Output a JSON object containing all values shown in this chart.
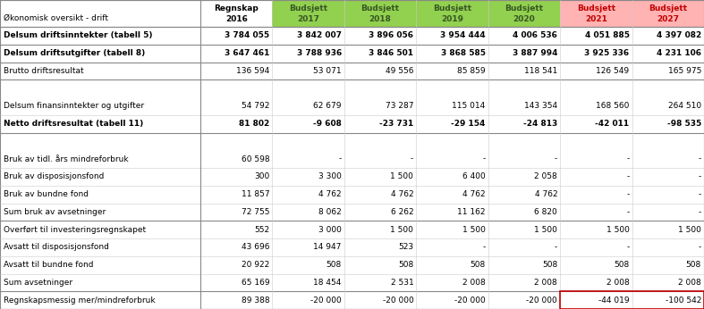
{
  "title_row1": "Økonomisk oversikt - drift",
  "col_headers_line1": [
    "Regnskap",
    "Budsjett",
    "Budsjett",
    "Budsjett",
    "Budsjett",
    "Budsjett",
    "Budsjett"
  ],
  "col_headers_line2": [
    "2016",
    "2017",
    "2018",
    "2019",
    "2020",
    "2021",
    "2027"
  ],
  "col_header_bg": [
    "#ffffff",
    "#92d050",
    "#92d050",
    "#92d050",
    "#92d050",
    "#ffb3b3",
    "#ffb3b3"
  ],
  "col_header_fg": [
    "#000000",
    "#375623",
    "#375623",
    "#375623",
    "#375623",
    "#c00000",
    "#c00000"
  ],
  "rows": [
    {
      "label": "Delsum driftsinntekter (tabell 5)",
      "values": [
        "3 784 055",
        "3 842 007",
        "3 896 056",
        "3 954 444",
        "4 006 536",
        "4 051 885",
        "4 397 082"
      ],
      "bold": true,
      "thick_bottom": true,
      "thick_top": true
    },
    {
      "label": "Delsum driftsutgifter (tabell 8)",
      "values": [
        "3 647 461",
        "3 788 936",
        "3 846 501",
        "3 868 585",
        "3 887 994",
        "3 925 336",
        "4 231 106"
      ],
      "bold": true,
      "thick_bottom": true,
      "thick_top": false
    },
    {
      "label": "Brutto driftsresultat",
      "values": [
        "136 594",
        "53 071",
        "49 556",
        "85 859",
        "118 541",
        "126 549",
        "165 975"
      ],
      "bold": false,
      "thick_bottom": true,
      "thick_top": false
    },
    {
      "label": "",
      "values": [
        "",
        "",
        "",
        "",
        "",
        "",
        ""
      ],
      "bold": false,
      "thick_bottom": false,
      "thick_top": false,
      "empty": true
    },
    {
      "label": "Delsum finansinntekter og utgifter",
      "values": [
        "54 792",
        "62 679",
        "73 287",
        "115 014",
        "143 354",
        "168 560",
        "264 510"
      ],
      "bold": false,
      "thick_bottom": false,
      "thick_top": false
    },
    {
      "label": "Netto driftsresultat (tabell 11)",
      "values": [
        "81 802",
        "-9 608",
        "-23 731",
        "-29 154",
        "-24 813",
        "-42 011",
        "-98 535"
      ],
      "bold": true,
      "thick_bottom": true,
      "thick_top": false
    },
    {
      "label": "",
      "values": [
        "",
        "",
        "",
        "",
        "",
        "",
        ""
      ],
      "bold": false,
      "thick_bottom": false,
      "thick_top": false,
      "empty": true
    },
    {
      "label": "Bruk av tidl. års mindreforbruk",
      "values": [
        "60 598",
        "-",
        "-",
        "-",
        "-",
        "-",
        "-"
      ],
      "bold": false,
      "thick_bottom": false,
      "thick_top": false
    },
    {
      "label": "Bruk av disposisjonsfond",
      "values": [
        "300",
        "3 300",
        "1 500",
        "6 400",
        "2 058",
        "-",
        "-"
      ],
      "bold": false,
      "thick_bottom": false,
      "thick_top": false
    },
    {
      "label": "Bruk av bundne fond",
      "values": [
        "11 857",
        "4 762",
        "4 762",
        "4 762",
        "4 762",
        "-",
        "-"
      ],
      "bold": false,
      "thick_bottom": false,
      "thick_top": false
    },
    {
      "label": "Sum bruk av avsetninger",
      "values": [
        "72 755",
        "8 062",
        "6 262",
        "11 162",
        "6 820",
        "-",
        "-"
      ],
      "bold": false,
      "thick_bottom": true,
      "thick_top": false
    },
    {
      "label": "Overført til investeringsregnskapet",
      "values": [
        "552",
        "3 000",
        "1 500",
        "1 500",
        "1 500",
        "1 500",
        "1 500"
      ],
      "bold": false,
      "thick_bottom": false,
      "thick_top": false
    },
    {
      "label": "Avsatt til disposisjonsfond",
      "values": [
        "43 696",
        "14 947",
        "523",
        "-",
        "-",
        "-",
        "-"
      ],
      "bold": false,
      "thick_bottom": false,
      "thick_top": false
    },
    {
      "label": "Avsatt til bundne fond",
      "values": [
        "20 922",
        "508",
        "508",
        "508",
        "508",
        "508",
        "508"
      ],
      "bold": false,
      "thick_bottom": false,
      "thick_top": false
    },
    {
      "label": "Sum avsetninger",
      "values": [
        "65 169",
        "18 454",
        "2 531",
        "2 008",
        "2 008",
        "2 008",
        "2 008"
      ],
      "bold": false,
      "thick_bottom": true,
      "thick_top": false
    },
    {
      "label": "Regnskapsmessig mer/mindreforbruk",
      "values": [
        "89 388",
        "-20 000",
        "-20 000",
        "-20 000",
        "-20 000",
        "-44 019",
        "-100 542"
      ],
      "bold": false,
      "thick_bottom": true,
      "thick_top": false,
      "last_row": true
    }
  ],
  "figsize": [
    7.87,
    3.46
  ],
  "dpi": 100
}
